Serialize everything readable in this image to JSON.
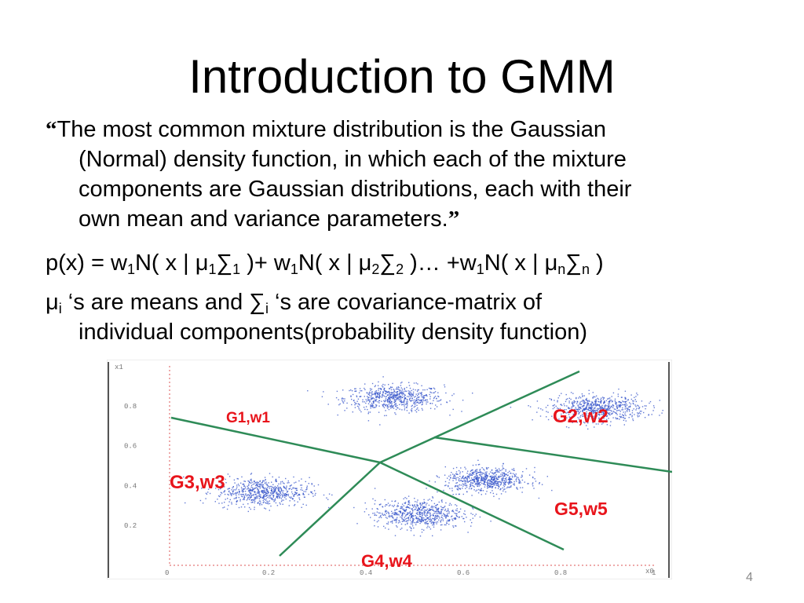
{
  "slide": {
    "title": "Introduction to GMM",
    "quote_open": "“",
    "quote_line1": "The most common mixture distribution is the Gaussian",
    "quote_line2": "(Normal) density function, in which each of the mixture",
    "quote_line3": "components are Gaussian distributions, each with their",
    "quote_line4": "own mean and variance parameters.",
    "quote_close": "”",
    "formula": {
      "p": "p(x) = w",
      "s1": "1",
      "n1": "N( x | μ",
      "s2": "1",
      "sig1": "∑",
      "s3": "1",
      "mid1": " )+ w",
      "s4": "1",
      "n2": "N( x | μ",
      "s5": "2",
      "sig2": "∑",
      "s6": "2",
      "mid2": " )… +w",
      "s7": "1",
      "n3": "N( x | μ",
      "s8": "n",
      "sig3": "∑",
      "s9": "n",
      "end": " )"
    },
    "means_line": {
      "mu": "μ",
      "i1": "i",
      "t1": " ‘s are means and  ∑",
      "i2": "i",
      "t2": " ‘s  are covariance-matrix of",
      "line2": "individual components(probability density function)"
    },
    "slide_number": "4"
  },
  "chart_data": {
    "type": "scatter",
    "description_labels": [
      "G1,w1",
      "G2,w2",
      "G3,w3",
      "G4,w4",
      "G5,w5"
    ],
    "x_ticks": [
      "0",
      "0.2",
      "0.4",
      "0.6",
      "0.8",
      "1"
    ],
    "y_ticks": [
      "0.2",
      "0.4",
      "0.6",
      "0.8"
    ],
    "x_axis_label": "x0",
    "y_axis_label": "x1",
    "xlim": [
      0,
      1
    ],
    "ylim": [
      0,
      1
    ],
    "series": [
      {
        "name": "G1,w1",
        "center": [
          0.46,
          0.84
        ],
        "spread": [
          0.085,
          0.055
        ]
      },
      {
        "name": "G2,w2",
        "center": [
          0.88,
          0.79
        ],
        "spread": [
          0.08,
          0.055
        ]
      },
      {
        "name": "G3,w3",
        "center": [
          0.19,
          0.37
        ],
        "spread": [
          0.08,
          0.06
        ]
      },
      {
        "name": "G4,w4",
        "center": [
          0.51,
          0.26
        ],
        "spread": [
          0.075,
          0.06
        ]
      },
      {
        "name": "G5,w5",
        "center": [
          0.65,
          0.43
        ],
        "spread": [
          0.07,
          0.05
        ]
      }
    ],
    "boundary_color": "#2e8b57",
    "point_color": "#3250c8",
    "label_color": "#e8141b"
  }
}
